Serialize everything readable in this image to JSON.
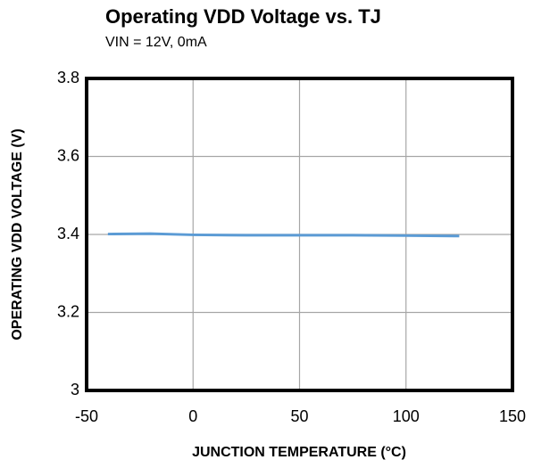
{
  "chart_data": {
    "type": "line",
    "title": "Operating VDD Voltage vs. TJ",
    "subtitle": "VIN = 12V, 0mA",
    "xlabel": "JUNCTION TEMPERATURE (°C)",
    "ylabel": "OPERATING  VDD VOLTAGE  (V)",
    "x": [
      -40,
      -20,
      0,
      25,
      50,
      75,
      100,
      125
    ],
    "series": [
      {
        "name": "VDD",
        "color": "#5b9bd5",
        "values": [
          3.401,
          3.402,
          3.399,
          3.398,
          3.398,
          3.398,
          3.397,
          3.396
        ]
      }
    ],
    "xlim": [
      -50,
      150
    ],
    "xticks": [
      -50,
      0,
      50,
      100,
      150
    ],
    "ylim": [
      3,
      3.8
    ],
    "yticks": [
      3,
      3.2,
      3.4,
      3.6,
      3.8
    ],
    "grid": true
  }
}
